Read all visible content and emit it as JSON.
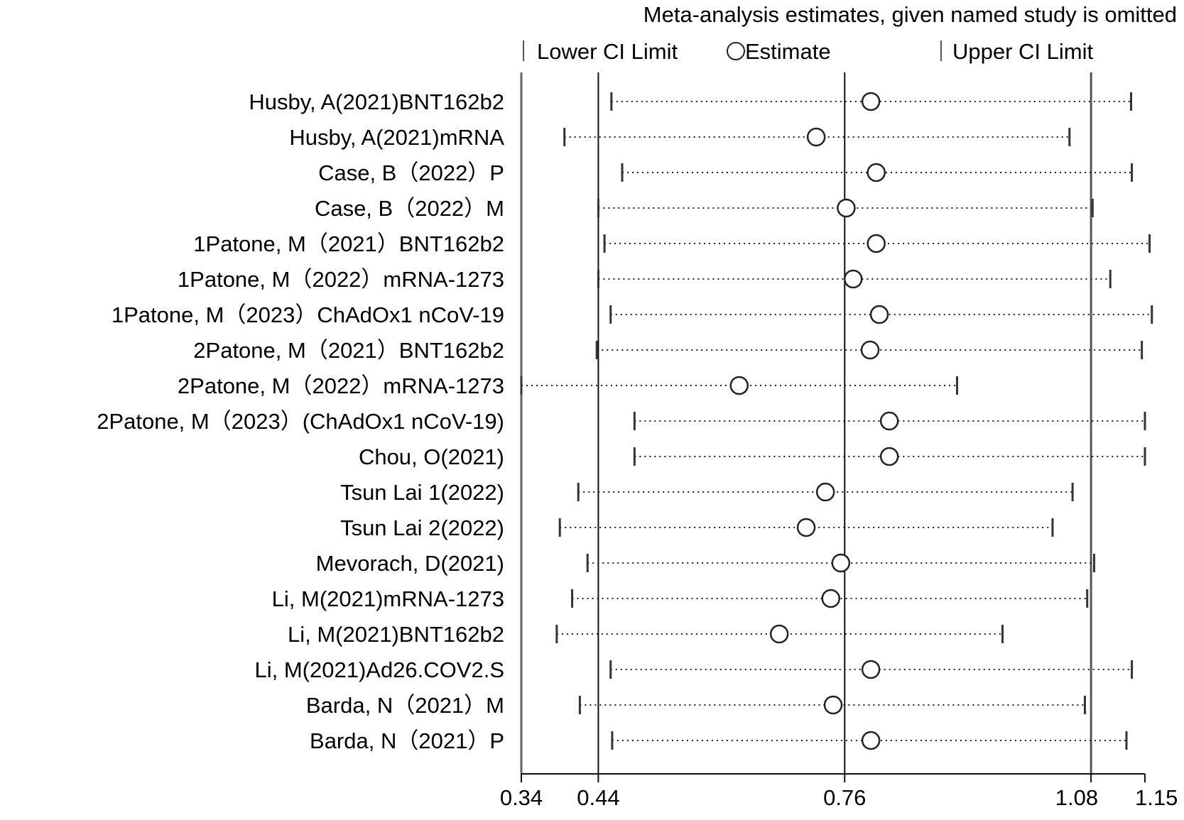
{
  "chart_data": {
    "type": "forest",
    "title": "Meta-analysis estimates, given named study is omitted",
    "legend": {
      "lower": "Lower CI Limit",
      "estimate": "Estimate",
      "upper": "Upper CI Limit"
    },
    "x_ticks": [
      {
        "value": 0.34,
        "label": "0.34"
      },
      {
        "value": 0.44,
        "label": "0.44"
      },
      {
        "value": 0.76,
        "label": "0.76"
      },
      {
        "value": 1.08,
        "label": "1.08"
      },
      {
        "value": 1.15,
        "label": "1.15"
      }
    ],
    "xlim": [
      0.34,
      1.15
    ],
    "reference_lines": [
      0.44,
      0.76,
      1.08
    ],
    "studies": [
      {
        "label": "Husby, A(2021)BNT162b2",
        "lower": 0.457,
        "estimate": 0.794,
        "upper": 1.132
      },
      {
        "label": "Husby, A(2021)mRNA",
        "lower": 0.396,
        "estimate": 0.723,
        "upper": 1.052
      },
      {
        "label": "Case, B（2022）P",
        "lower": 0.471,
        "estimate": 0.801,
        "upper": 1.133
      },
      {
        "label": "Case, B（2022）M",
        "lower": 0.44,
        "estimate": 0.762,
        "upper": 1.082
      },
      {
        "label": "1Patone, M（2021）BNT162b2",
        "lower": 0.448,
        "estimate": 0.801,
        "upper": 1.156
      },
      {
        "label": "1Patone, M（2022）mRNA-1273",
        "lower": 0.44,
        "estimate": 0.771,
        "upper": 1.105
      },
      {
        "label": "1Patone, M（2023）ChAdOx1 nCoV-19",
        "lower": 0.456,
        "estimate": 0.805,
        "upper": 1.159
      },
      {
        "label": "2Patone, M（2021）BNT162b2",
        "lower": 0.438,
        "estimate": 0.793,
        "upper": 1.146
      },
      {
        "label": "2Patone, M（2022）mRNA-1273",
        "lower": 0.34,
        "estimate": 0.623,
        "upper": 0.906
      },
      {
        "label": "2Patone, M（2023）(ChAdOx1 nCoV-19)",
        "lower": 0.487,
        "estimate": 0.818,
        "upper": 1.15
      },
      {
        "label": "Chou, O(2021)",
        "lower": 0.487,
        "estimate": 0.818,
        "upper": 1.15
      },
      {
        "label": "Tsun Lai  1(2022)",
        "lower": 0.414,
        "estimate": 0.735,
        "upper": 1.056
      },
      {
        "label": "Tsun Lai  2(2022)",
        "lower": 0.39,
        "estimate": 0.71,
        "upper": 1.03
      },
      {
        "label": "Mevorach, D(2021)",
        "lower": 0.426,
        "estimate": 0.755,
        "upper": 1.084
      },
      {
        "label": "Li, M(2021)mRNA-1273",
        "lower": 0.406,
        "estimate": 0.742,
        "upper": 1.075
      },
      {
        "label": "Li, M(2021)BNT162b2",
        "lower": 0.386,
        "estimate": 0.675,
        "upper": 0.965
      },
      {
        "label": "Li, M(2021)Ad26.COV2.S",
        "lower": 0.456,
        "estimate": 0.794,
        "upper": 1.133
      },
      {
        "label": "Barda, N（2021）M",
        "lower": 0.416,
        "estimate": 0.745,
        "upper": 1.072
      },
      {
        "label": "Barda, N（2021）P",
        "lower": 0.458,
        "estimate": 0.794,
        "upper": 1.126
      }
    ]
  }
}
